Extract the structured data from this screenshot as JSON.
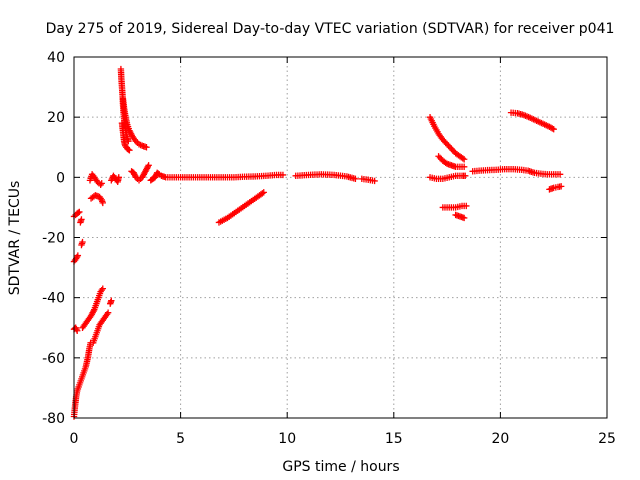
{
  "chart_data": {
    "type": "scatter",
    "title": "Day 275 of 2019, Sidereal Day-to-day VTEC variation (SDTVAR) for receiver p041",
    "xlabel": "GPS time / hours",
    "ylabel": "SDTVAR / TECUs",
    "xlim": [
      0,
      25
    ],
    "ylim": [
      -80,
      40
    ],
    "xticks": [
      0,
      5,
      10,
      15,
      20,
      25
    ],
    "yticks": [
      -80,
      -60,
      -40,
      -20,
      0,
      20,
      40
    ],
    "grid": true,
    "marker": "plus",
    "color": "#ff0000",
    "series": [
      {
        "segments": [
          [
            [
              0.0,
              -79.5
            ],
            [
              0.05,
              -76
            ],
            [
              0.1,
              -73
            ],
            [
              0.15,
              -71
            ],
            [
              0.25,
              -69
            ],
            [
              0.35,
              -67
            ],
            [
              0.45,
              -65
            ],
            [
              0.55,
              -63
            ],
            [
              0.65,
              -60
            ],
            [
              0.72,
              -57
            ],
            [
              0.78,
              -55
            ]
          ],
          [
            [
              0.0,
              -50.5
            ],
            [
              0.08,
              -50
            ],
            [
              0.15,
              -51
            ]
          ],
          [
            [
              0.0,
              -28
            ],
            [
              0.1,
              -27
            ],
            [
              0.18,
              -26
            ]
          ],
          [
            [
              0.0,
              -13
            ],
            [
              0.15,
              -12
            ],
            [
              0.25,
              -11.5
            ]
          ],
          [
            [
              0.35,
              -22.5
            ],
            [
              0.4,
              -21.5
            ]
          ],
          [
            [
              0.3,
              -15
            ],
            [
              0.35,
              -14
            ]
          ],
          [
            [
              0.4,
              -50
            ],
            [
              0.6,
              -48
            ],
            [
              0.8,
              -46
            ],
            [
              0.95,
              -44
            ],
            [
              1.05,
              -42
            ],
            [
              1.15,
              -40
            ],
            [
              1.25,
              -38
            ],
            [
              1.35,
              -37
            ]
          ],
          [
            [
              0.9,
              -55
            ],
            [
              1.0,
              -53
            ],
            [
              1.1,
              -51
            ],
            [
              1.2,
              -49
            ],
            [
              1.3,
              -48
            ],
            [
              1.4,
              -47
            ],
            [
              1.5,
              -46
            ],
            [
              1.6,
              -45
            ]
          ],
          [
            [
              1.7,
              -42
            ],
            [
              1.75,
              -41
            ]
          ],
          [
            [
              0.8,
              -7
            ],
            [
              1.0,
              -6
            ],
            [
              1.2,
              -6.5
            ],
            [
              1.3,
              -7.5
            ],
            [
              1.35,
              -8.5
            ]
          ],
          [
            [
              0.75,
              -1
            ],
            [
              0.85,
              1
            ],
            [
              0.95,
              0
            ],
            [
              1.1,
              -1.5
            ],
            [
              1.25,
              -2.5
            ],
            [
              1.3,
              -2
            ]
          ],
          [
            [
              1.75,
              -1
            ],
            [
              1.85,
              0.5
            ],
            [
              1.95,
              -0.5
            ],
            [
              2.05,
              -1.5
            ],
            [
              2.1,
              0
            ]
          ],
          [
            [
              2.2,
              36
            ],
            [
              2.22,
              33
            ],
            [
              2.25,
              30
            ],
            [
              2.28,
              27
            ],
            [
              2.3,
              24
            ],
            [
              2.33,
              21
            ],
            [
              2.36,
              19
            ],
            [
              2.4,
              17
            ],
            [
              2.44,
              15
            ],
            [
              2.5,
              13
            ],
            [
              2.55,
              12
            ]
          ],
          [
            [
              2.25,
              18
            ],
            [
              2.3,
              15
            ],
            [
              2.35,
              12
            ],
            [
              2.4,
              10.5
            ],
            [
              2.5,
              9.5
            ],
            [
              2.6,
              9
            ]
          ],
          [
            [
              2.3,
              26
            ],
            [
              2.35,
              23
            ],
            [
              2.42,
              20
            ],
            [
              2.5,
              17.5
            ],
            [
              2.6,
              15.5
            ],
            [
              2.75,
              13.5
            ],
            [
              2.9,
              12
            ],
            [
              3.05,
              11
            ],
            [
              3.2,
              10.5
            ],
            [
              3.4,
              10
            ]
          ],
          [
            [
              2.7,
              2
            ],
            [
              2.8,
              1.5
            ],
            [
              2.9,
              0
            ],
            [
              3.05,
              -1
            ],
            [
              3.2,
              0
            ],
            [
              3.35,
              2
            ],
            [
              3.5,
              4
            ]
          ],
          [
            [
              3.6,
              -1
            ],
            [
              3.7,
              -0.5
            ],
            [
              3.8,
              0
            ],
            [
              3.9,
              1.5
            ],
            [
              4.0,
              1
            ]
          ],
          [
            [
              4.1,
              0.5
            ],
            [
              4.3,
              0
            ],
            [
              4.6,
              0
            ],
            [
              5.0,
              0
            ],
            [
              5.5,
              0
            ],
            [
              6.0,
              0
            ],
            [
              6.5,
              0
            ],
            [
              7.0,
              0
            ],
            [
              7.5,
              0
            ],
            [
              8.0,
              0.2
            ],
            [
              8.5,
              0.3
            ],
            [
              9.0,
              0.5
            ],
            [
              9.5,
              0.8
            ],
            [
              9.8,
              0.8
            ]
          ],
          [
            [
              10.4,
              0.5
            ],
            [
              11.0,
              0.8
            ],
            [
              11.6,
              1.0
            ],
            [
              12.2,
              0.8
            ],
            [
              12.8,
              0.3
            ],
            [
              13.2,
              -0.5
            ]
          ],
          [
            [
              13.5,
              -0.5
            ],
            [
              13.8,
              -0.8
            ],
            [
              14.1,
              -1.2
            ]
          ],
          [
            [
              6.8,
              -15
            ],
            [
              7.2,
              -13.5
            ],
            [
              7.6,
              -11.5
            ],
            [
              8.0,
              -9.5
            ],
            [
              8.4,
              -7.5
            ],
            [
              8.7,
              -6
            ],
            [
              8.9,
              -5
            ]
          ],
          [
            [
              16.7,
              20
            ],
            [
              16.9,
              17
            ],
            [
              17.1,
              14.5
            ],
            [
              17.3,
              12.5
            ],
            [
              17.5,
              11
            ],
            [
              17.7,
              9.5
            ],
            [
              17.9,
              8
            ],
            [
              18.1,
              7
            ],
            [
              18.3,
              6
            ]
          ],
          [
            [
              17.1,
              7
            ],
            [
              17.3,
              5.5
            ],
            [
              17.5,
              4.5
            ],
            [
              17.7,
              4
            ],
            [
              17.9,
              3.5
            ],
            [
              18.1,
              3.5
            ],
            [
              18.3,
              3.5
            ]
          ],
          [
            [
              16.7,
              0
            ],
            [
              17.0,
              -0.5
            ],
            [
              17.3,
              -0.5
            ],
            [
              17.6,
              0
            ],
            [
              17.9,
              0.5
            ],
            [
              18.2,
              0.5
            ],
            [
              18.35,
              0.5
            ]
          ],
          [
            [
              17.3,
              -10
            ],
            [
              17.6,
              -10
            ],
            [
              17.9,
              -10
            ],
            [
              18.2,
              -9.5
            ],
            [
              18.4,
              -9.5
            ]
          ],
          [
            [
              17.9,
              -12.5
            ],
            [
              18.1,
              -13
            ],
            [
              18.3,
              -13.5
            ]
          ],
          [
            [
              18.7,
              2
            ],
            [
              19.0,
              2.2
            ],
            [
              19.4,
              2.4
            ],
            [
              19.8,
              2.5
            ],
            [
              20.2,
              2.7
            ],
            [
              20.6,
              2.7
            ],
            [
              21.0,
              2.5
            ],
            [
              21.3,
              2.2
            ],
            [
              21.6,
              1.5
            ],
            [
              21.9,
              1.2
            ],
            [
              22.2,
              1.0
            ],
            [
              22.5,
              1.0
            ],
            [
              22.8,
              1.0
            ]
          ],
          [
            [
              20.5,
              21.5
            ],
            [
              20.8,
              21.3
            ],
            [
              21.1,
              20.7
            ],
            [
              21.4,
              19.8
            ],
            [
              21.7,
              18.8
            ],
            [
              22.0,
              17.8
            ],
            [
              22.3,
              16.8
            ],
            [
              22.5,
              16
            ]
          ],
          [
            [
              22.3,
              -4
            ],
            [
              22.5,
              -3.5
            ],
            [
              22.7,
              -3.2
            ],
            [
              22.85,
              -3
            ]
          ]
        ]
      }
    ]
  }
}
